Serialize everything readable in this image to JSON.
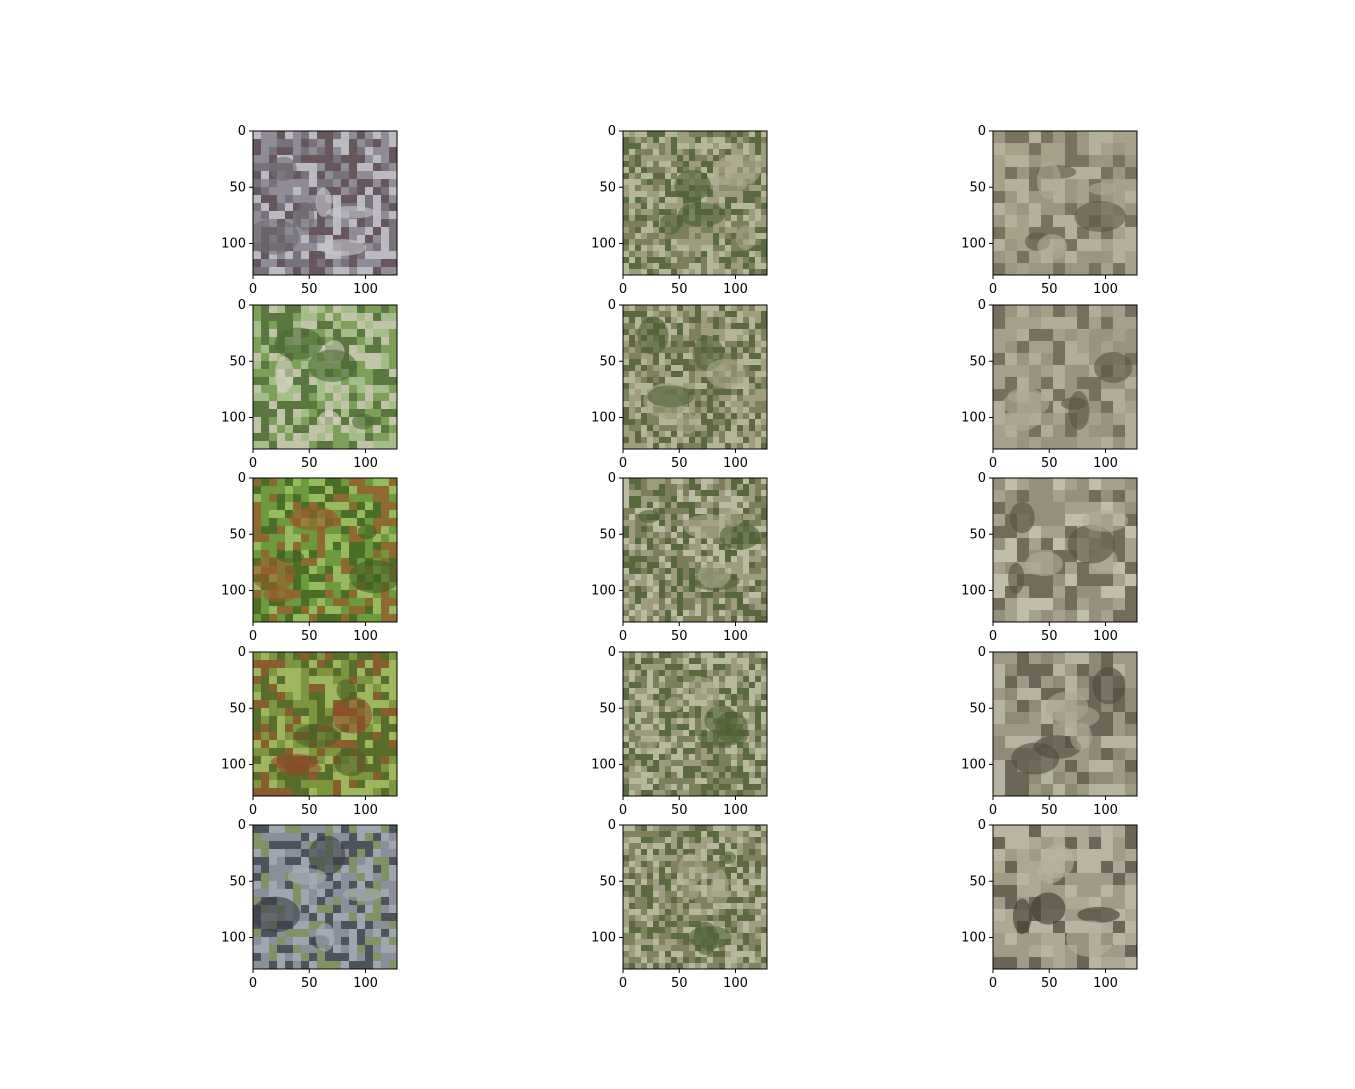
{
  "figure": {
    "background": "#ffffff",
    "rows": 5,
    "cols": 3
  },
  "chart_data": [
    {
      "type": "image",
      "row": 0,
      "col": 0,
      "content": "original-horse-photo",
      "palette": [
        "#8f8c98",
        "#5a4548",
        "#c9c8cf",
        "#6f6a72"
      ],
      "xlim": [
        0,
        128
      ],
      "ylim": [
        128,
        0
      ],
      "xticks": [
        "0",
        "50",
        "100"
      ],
      "yticks": [
        "0",
        "50",
        "100"
      ]
    },
    {
      "type": "image",
      "row": 0,
      "col": 1,
      "content": "generated-noisy-output",
      "palette": [
        "#7d7f5c",
        "#c8c9b0",
        "#4f6136",
        "#a8a58a"
      ],
      "xlim": [
        0,
        128
      ],
      "ylim": [
        128,
        0
      ],
      "xticks": [
        "0",
        "50",
        "100"
      ],
      "yticks": [
        "0",
        "50",
        "100"
      ]
    },
    {
      "type": "image",
      "row": 0,
      "col": 2,
      "content": "reconstructed-blurry-output",
      "palette": [
        "#9c9682",
        "#c9c6b3",
        "#5d5646",
        "#b0ab96"
      ],
      "xlim": [
        0,
        128
      ],
      "ylim": [
        128,
        0
      ],
      "xticks": [
        "0",
        "50",
        "100"
      ],
      "yticks": [
        "0",
        "50",
        "100"
      ]
    },
    {
      "type": "image",
      "row": 1,
      "col": 0,
      "content": "original-horse-photo",
      "palette": [
        "#7ea05a",
        "#b3c79a",
        "#4d6a35",
        "#d8d0c4"
      ],
      "xlim": [
        0,
        128
      ],
      "ylim": [
        128,
        0
      ],
      "xticks": [
        "0",
        "50",
        "100"
      ],
      "yticks": [
        "0",
        "50",
        "100"
      ]
    },
    {
      "type": "image",
      "row": 1,
      "col": 1,
      "content": "generated-noisy-output",
      "palette": [
        "#7f805e",
        "#c4c5ac",
        "#506237",
        "#a9a68b"
      ],
      "xlim": [
        0,
        128
      ],
      "ylim": [
        128,
        0
      ],
      "xticks": [
        "0",
        "50",
        "100"
      ],
      "yticks": [
        "0",
        "50",
        "100"
      ]
    },
    {
      "type": "image",
      "row": 1,
      "col": 2,
      "content": "reconstructed-blurry-output",
      "palette": [
        "#99937f",
        "#c6c3b0",
        "#5a5343",
        "#afa995"
      ],
      "xlim": [
        0,
        128
      ],
      "ylim": [
        128,
        0
      ],
      "xticks": [
        "0",
        "50",
        "100"
      ],
      "yticks": [
        "0",
        "50",
        "100"
      ]
    },
    {
      "type": "image",
      "row": 2,
      "col": 0,
      "content": "original-horse-photo",
      "palette": [
        "#6e9a3c",
        "#a4c66a",
        "#9a5a2c",
        "#3f5f22"
      ],
      "xlim": [
        0,
        128
      ],
      "ylim": [
        128,
        0
      ],
      "xticks": [
        "0",
        "50",
        "100"
      ],
      "yticks": [
        "0",
        "50",
        "100"
      ]
    },
    {
      "type": "image",
      "row": 2,
      "col": 1,
      "content": "generated-noisy-output",
      "palette": [
        "#7c7e5b",
        "#cfd0ba",
        "#4e6035",
        "#aaa78c"
      ],
      "xlim": [
        0,
        128
      ],
      "ylim": [
        128,
        0
      ],
      "xticks": [
        "0",
        "50",
        "100"
      ],
      "yticks": [
        "0",
        "50",
        "100"
      ]
    },
    {
      "type": "image",
      "row": 2,
      "col": 2,
      "content": "reconstructed-blurry-output",
      "palette": [
        "#96907c",
        "#e4e1d2",
        "#55503f",
        "#b3ae99"
      ],
      "xlim": [
        0,
        128
      ],
      "ylim": [
        128,
        0
      ],
      "xticks": [
        "0",
        "50",
        "100"
      ],
      "yticks": [
        "0",
        "50",
        "100"
      ]
    },
    {
      "type": "image",
      "row": 3,
      "col": 0,
      "content": "original-horse-photo",
      "palette": [
        "#7b963f",
        "#a9c06a",
        "#8e4a2a",
        "#4c5e26"
      ],
      "xlim": [
        0,
        128
      ],
      "ylim": [
        128,
        0
      ],
      "xticks": [
        "0",
        "50",
        "100"
      ],
      "yticks": [
        "0",
        "50",
        "100"
      ]
    },
    {
      "type": "image",
      "row": 3,
      "col": 1,
      "content": "generated-noisy-output",
      "palette": [
        "#7e805d",
        "#cbccb4",
        "#4f6136",
        "#a7a489"
      ],
      "xlim": [
        0,
        128
      ],
      "ylim": [
        128,
        0
      ],
      "xticks": [
        "0",
        "50",
        "100"
      ],
      "yticks": [
        "0",
        "50",
        "100"
      ]
    },
    {
      "type": "image",
      "row": 3,
      "col": 2,
      "content": "reconstructed-blurry-output",
      "palette": [
        "#8f8a77",
        "#d8d5c5",
        "#4e493a",
        "#aaa591"
      ],
      "xlim": [
        0,
        128
      ],
      "ylim": [
        128,
        0
      ],
      "xticks": [
        "0",
        "50",
        "100"
      ],
      "yticks": [
        "0",
        "50",
        "100"
      ]
    },
    {
      "type": "image",
      "row": 4,
      "col": 0,
      "content": "original-horse-photo",
      "palette": [
        "#8a8f9c",
        "#7d9450",
        "#3a3d44",
        "#a7aeb8"
      ],
      "xlim": [
        0,
        128
      ],
      "ylim": [
        128,
        0
      ],
      "xticks": [
        "0",
        "50",
        "100"
      ],
      "yticks": [
        "0",
        "50",
        "100"
      ]
    },
    {
      "type": "image",
      "row": 4,
      "col": 1,
      "content": "generated-noisy-output",
      "palette": [
        "#7f815f",
        "#c9cab2",
        "#506237",
        "#aba88d"
      ],
      "xlim": [
        0,
        128
      ],
      "ylim": [
        128,
        0
      ],
      "xticks": [
        "0",
        "50",
        "100"
      ],
      "yticks": [
        "0",
        "50",
        "100"
      ]
    },
    {
      "type": "image",
      "row": 4,
      "col": 2,
      "content": "reconstructed-blurry-output",
      "palette": [
        "#a09a87",
        "#cfccba",
        "#3f3a30",
        "#b8b39f"
      ],
      "xlim": [
        0,
        128
      ],
      "ylim": [
        128,
        0
      ],
      "xticks": [
        "0",
        "50",
        "100"
      ],
      "yticks": [
        "0",
        "50",
        "100"
      ]
    }
  ]
}
